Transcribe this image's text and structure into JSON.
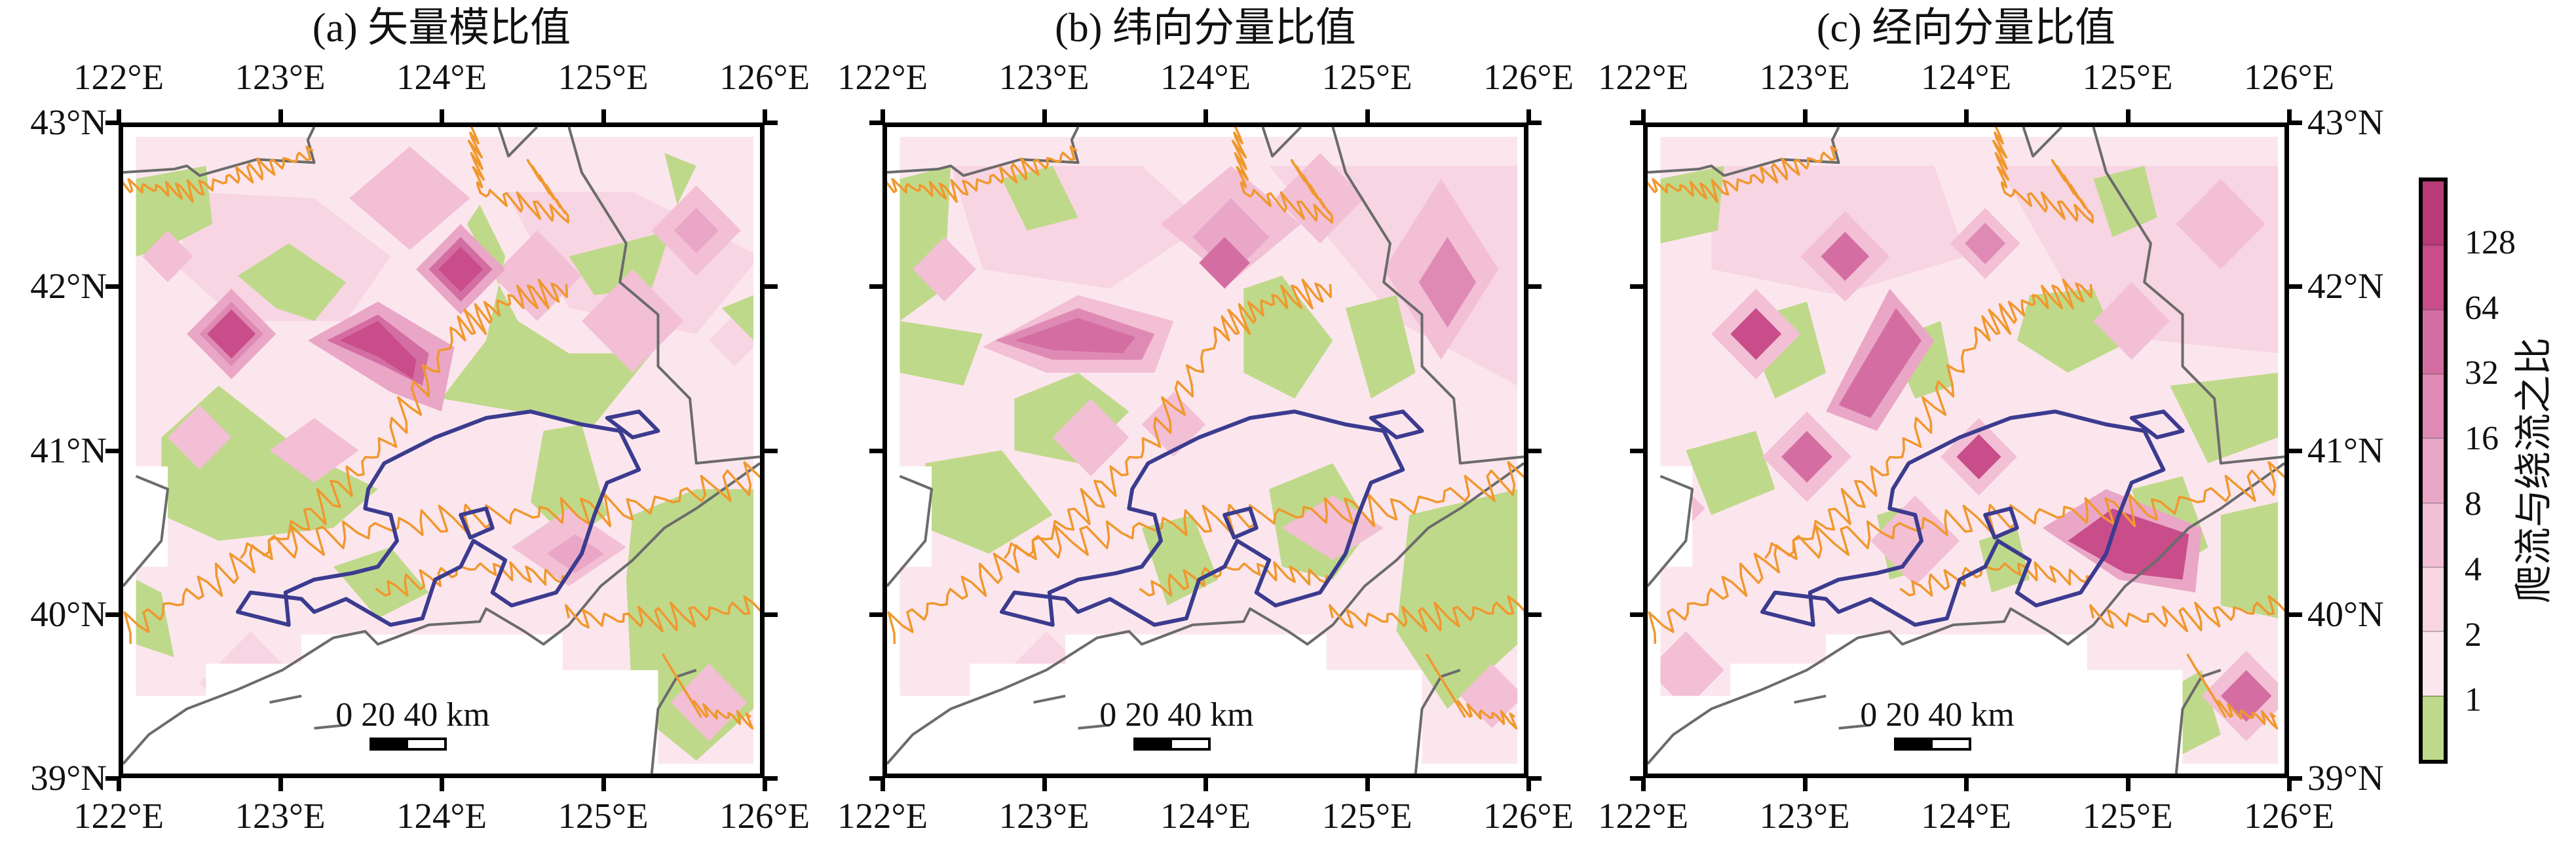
{
  "panels": [
    {
      "title": "(a) 矢量模比值"
    },
    {
      "title": "(b) 纬向分量比值"
    },
    {
      "title": "(c) 经向分量比值"
    }
  ],
  "axes": {
    "lon_labels": [
      "122°E",
      "123°E",
      "124°E",
      "125°E",
      "126°E"
    ],
    "lat_labels": [
      "43°N",
      "42°N",
      "41°N",
      "40°N",
      "39°N"
    ]
  },
  "scale_bar": {
    "label": "0 20 40 km"
  },
  "colorbar": {
    "title": "爬流与绕流之比",
    "ticks": [
      "1",
      "2",
      "4",
      "8",
      "16",
      "32",
      "64",
      "128"
    ],
    "colors": [
      "#bfd98a",
      "#fce6ee",
      "#f8d5e2",
      "#f2bfd5",
      "#eaa6c6",
      "#df8ab4",
      "#d46ea2",
      "#c84d8a",
      "#b83a76"
    ]
  },
  "line_colors": {
    "boundary": "#6b6b6b",
    "outline": "#3b3b8f",
    "contour": "#f0982e"
  }
}
